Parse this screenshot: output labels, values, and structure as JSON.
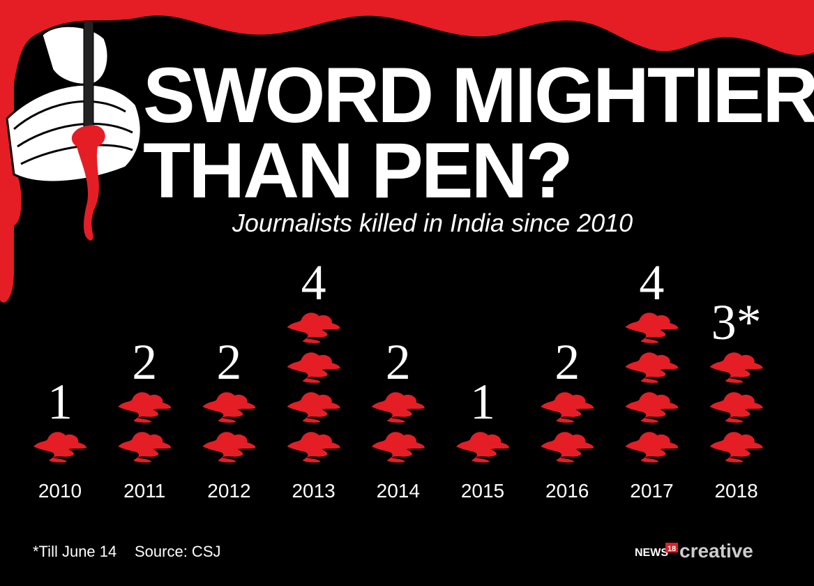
{
  "chart_data": {
    "type": "pictogram",
    "title": [
      "SWORD MIGHTIER",
      "THAN PEN?"
    ],
    "subtitle": "Journalists killed in India since 2010",
    "categories": [
      "2010",
      "2011",
      "2012",
      "2013",
      "2014",
      "2015",
      "2016",
      "2017",
      "2018"
    ],
    "values": [
      1,
      2,
      2,
      4,
      2,
      1,
      2,
      4,
      3
    ],
    "value_labels": [
      "1",
      "2",
      "2",
      "4",
      "2",
      "1",
      "2",
      "4",
      "3*"
    ],
    "color": "#e51d25",
    "footnote": "*Till June 14",
    "source": "Source: CSJ",
    "brand": {
      "news": "NEWS",
      "number": "18",
      "name": "creative"
    }
  }
}
